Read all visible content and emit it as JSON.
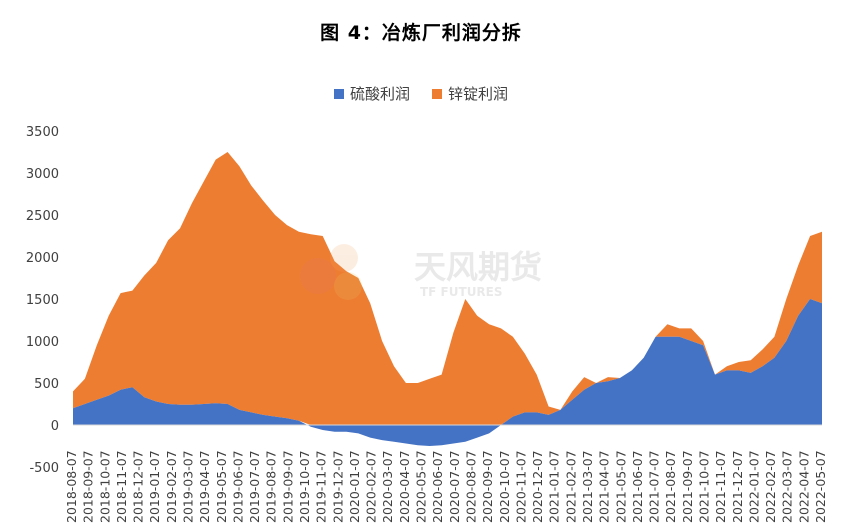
{
  "chart_data": {
    "type": "area",
    "title": "图 4：冶炼厂利润分拆",
    "xlabel": "",
    "ylabel": "",
    "ylim": [
      -500,
      3500
    ],
    "yticks": [
      -500,
      0,
      500,
      1000,
      1500,
      2000,
      2500,
      3000,
      3500
    ],
    "legend_position": "top",
    "grid": false,
    "stacked": true,
    "x_ticks": [
      "2018-08-07",
      "2018-09-07",
      "2018-10-07",
      "2018-11-07",
      "2018-12-07",
      "2019-01-07",
      "2019-02-07",
      "2019-03-07",
      "2019-04-07",
      "2019-05-07",
      "2019-06-07",
      "2019-07-07",
      "2019-08-07",
      "2019-09-07",
      "2019-10-07",
      "2019-11-07",
      "2019-12-07",
      "2020-01-07",
      "2020-02-07",
      "2020-03-07",
      "2020-04-07",
      "2020-05-07",
      "2020-06-07",
      "2020-07-07",
      "2020-08-07",
      "2020-09-07",
      "2020-10-07",
      "2020-11-07",
      "2020-12-07",
      "2021-01-07",
      "2021-02-07",
      "2021-03-07",
      "2021-04-07",
      "2021-05-07",
      "2021-06-07",
      "2021-07-07",
      "2021-08-07",
      "2021-09-07",
      "2021-10-07",
      "2021-11-07",
      "2021-12-07",
      "2022-01-07",
      "2022-02-07",
      "2022-03-07",
      "2022-04-07",
      "2022-05-07"
    ],
    "series": [
      {
        "name": "硫酸利润",
        "color": "#4472C4",
        "values": [
          200,
          250,
          300,
          350,
          420,
          450,
          330,
          280,
          250,
          240,
          240,
          250,
          260,
          250,
          180,
          150,
          120,
          100,
          80,
          50,
          -20,
          -60,
          -80,
          -80,
          -100,
          -150,
          -180,
          -200,
          -220,
          -240,
          -250,
          -240,
          -220,
          -200,
          -150,
          -100,
          0,
          100,
          150,
          150,
          120,
          180,
          300,
          420,
          500,
          520,
          560,
          650,
          800,
          1050,
          1050,
          1050,
          1000,
          950,
          600,
          650,
          650,
          620,
          700,
          800,
          1000,
          1300,
          1500,
          1450
        ]
      },
      {
        "name": "锌锭利润",
        "color": "#ED7D31",
        "values": [
          200,
          300,
          650,
          950,
          1150,
          1150,
          1450,
          1650,
          1950,
          2100,
          2400,
          2650,
          2900,
          3000,
          2900,
          2700,
          2550,
          2400,
          2300,
          2250,
          2270,
          2250,
          1950,
          1830,
          1750,
          1450,
          1000,
          700,
          500,
          500,
          550,
          600,
          1100,
          1500,
          1300,
          1200,
          1150,
          950,
          700,
          450,
          100,
          0,
          100,
          150,
          0,
          50,
          0,
          0,
          0,
          0,
          150,
          100,
          150,
          50,
          0,
          50,
          100,
          150,
          200,
          250,
          500,
          600,
          750,
          850
        ]
      }
    ]
  },
  "watermark": {
    "cn": "天风期货",
    "en": "TF FUTURES"
  }
}
